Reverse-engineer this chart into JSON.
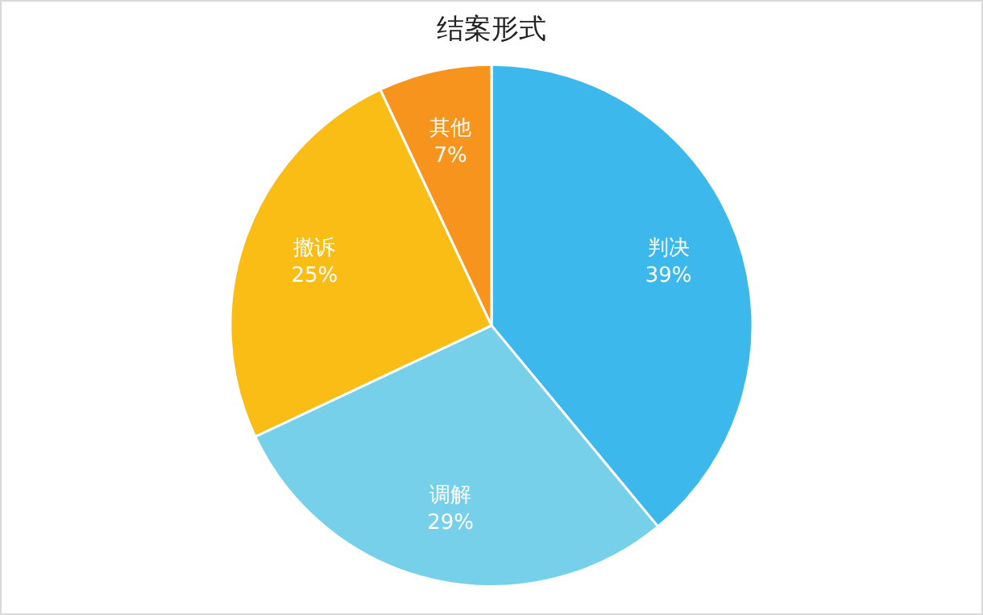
{
  "chart_data": {
    "type": "pie",
    "title": "结案形式",
    "categories": [
      "判决",
      "调解",
      "撤诉",
      "其他"
    ],
    "values": [
      39,
      29,
      25,
      7
    ],
    "value_labels": [
      "39%",
      "29%",
      "25%",
      "7%"
    ],
    "colors": [
      "#3db8ec",
      "#76d0e9",
      "#f9bd16",
      "#f7941d"
    ],
    "legend": false
  }
}
